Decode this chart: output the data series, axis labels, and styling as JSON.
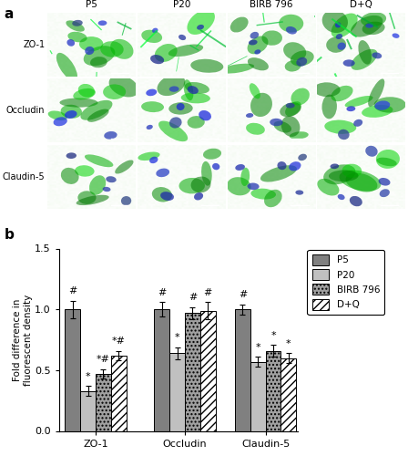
{
  "title_panel_a": "a",
  "title_panel_b": "b",
  "groups": [
    "ZO-1",
    "Occludin",
    "Claudin-5"
  ],
  "conditions": [
    "P5",
    "P20",
    "BIRB 796",
    "D+Q"
  ],
  "values": {
    "ZO-1": [
      1.0,
      0.33,
      0.47,
      0.62
    ],
    "Occludin": [
      1.0,
      0.64,
      0.97,
      0.99
    ],
    "Claudin-5": [
      1.0,
      0.57,
      0.66,
      0.6
    ]
  },
  "errors": {
    "ZO-1": [
      0.07,
      0.04,
      0.04,
      0.04
    ],
    "Occludin": [
      0.06,
      0.05,
      0.05,
      0.07
    ],
    "Claudin-5": [
      0.04,
      0.04,
      0.05,
      0.04
    ]
  },
  "annotations": {
    "ZO-1": [
      "#",
      "*",
      "*#",
      "*#"
    ],
    "Occludin": [
      "#",
      "*",
      "#",
      "#"
    ],
    "Claudin-5": [
      "#",
      "*",
      "*",
      "*"
    ]
  },
  "bar_color_list": [
    "#808080",
    "#c0c0c0",
    "#a0a0a0",
    "#ffffff"
  ],
  "hatch_list": [
    "",
    "",
    "....",
    "////"
  ],
  "ylabel": "Fold difference in\nfluorescent density",
  "ylim": [
    0,
    1.5
  ],
  "yticks": [
    0.0,
    0.5,
    1.0,
    1.5
  ],
  "legend_labels": [
    "P5",
    "P20",
    "BIRB 796",
    "D+Q"
  ],
  "legend_colors": [
    "#808080",
    "#c0c0c0",
    "#a0a0a0",
    "#ffffff"
  ],
  "legend_hatches": [
    "",
    "",
    "....",
    "////"
  ],
  "bar_width": 0.18,
  "group_centers": [
    0.0,
    1.05,
    2.0
  ],
  "font_size": 8,
  "annot_font_size": 8,
  "image_panel": {
    "rows": 3,
    "cols": 4,
    "row_labels": [
      "ZO-1",
      "Occludin",
      "Claudin-5"
    ],
    "col_labels": [
      "P5",
      "P20",
      "BIRB 796",
      "D+Q"
    ],
    "bg_colors": [
      [
        "#0a1a06",
        "#060e03",
        "#0d1a08",
        "#060e03"
      ],
      [
        "#050e03",
        "#050e03",
        "#0a1505",
        "#050e03"
      ],
      [
        "#0a1505",
        "#080e04",
        "#0a1505",
        "#080e04"
      ]
    ]
  }
}
